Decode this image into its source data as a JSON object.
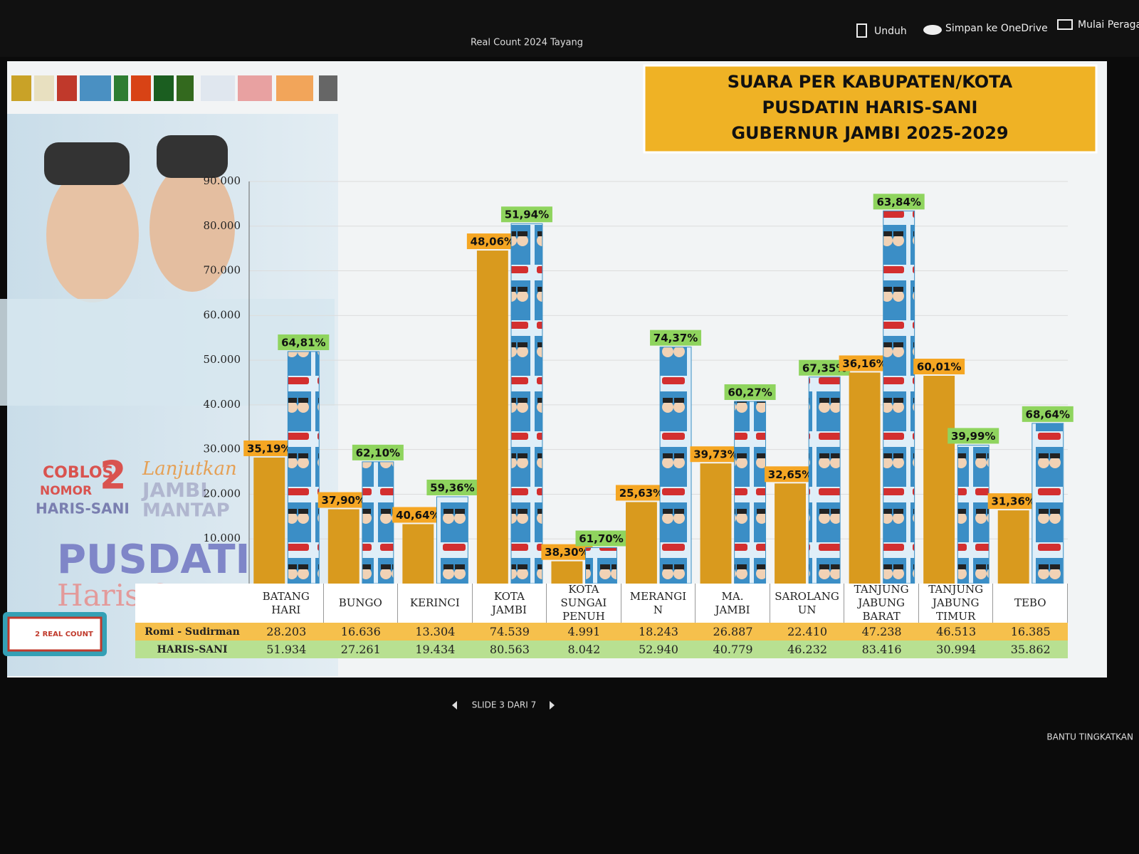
{
  "toolbar": {
    "title": "Real Count 2024 Tayang",
    "buttons": [
      "Unduh",
      "Simpan ke OneDrive",
      "Mulai Peraga"
    ]
  },
  "footer": {
    "slide": "SLIDE 3 DARI 7",
    "help": "BANTU TINGKATKAN"
  },
  "side_panel": {
    "campaign": [
      "COBLOS",
      "NOMOR",
      "2",
      "HARIS-SANI"
    ],
    "slogan": [
      "Lanjutkan",
      "JAMBI",
      "MANTAP"
    ],
    "brand": [
      "PUSDATIN",
      "Haris-Sani"
    ],
    "badge": "2 REAL COUNT"
  },
  "chart_data": {
    "type": "bar",
    "title": [
      "SUARA PER KABUPATEN/KOTA",
      "PUSDATIN HARIS-SANI",
      "GUBERNUR JAMBI 2025-2029"
    ],
    "categories": [
      "BATANG HARI",
      "BUNGO",
      "KERINCI",
      "KOTA JAMBI",
      "KOTA SUNGAI PENUH",
      "MERANGI N",
      "MA. JAMBI",
      "SAROLANG UN",
      "TANJUNG JABUNG BARAT",
      "TANJUNG JABUNG TIMUR",
      "TEBO"
    ],
    "series": [
      {
        "name": "Romi - Sudirman",
        "color": "#d99a1e",
        "values": [
          28203,
          16636,
          13304,
          74539,
          4991,
          18243,
          26887,
          22410,
          47238,
          46513,
          16385
        ],
        "value_labels": [
          "28.203",
          "16.636",
          "13.304",
          "74.539",
          "4.991",
          "18.243",
          "26.887",
          "22.410",
          "47.238",
          "46.513",
          "16.385"
        ],
        "percent_labels": [
          "35,19%",
          "37,90%",
          "40,64%",
          "48,06%",
          "38,30%",
          "25,63%",
          "39,73%",
          "32,65%",
          "36,16%",
          "60,01%",
          "31,36%"
        ]
      },
      {
        "name": "HARIS-SANI",
        "color": "#3a8fc4",
        "values": [
          51934,
          27261,
          19434,
          80563,
          8042,
          52940,
          40779,
          46232,
          83416,
          30994,
          35862
        ],
        "value_labels": [
          "51.934",
          "27.261",
          "19.434",
          "80.563",
          "8.042",
          "52.940",
          "40.779",
          "46.232",
          "83.416",
          "30.994",
          "35.862"
        ],
        "percent_labels": [
          "64,81%",
          "62,10%",
          "59,36%",
          "51,94%",
          "61,70%",
          "74,37%",
          "60,27%",
          "67,35%",
          "63,84%",
          "39,99%",
          "68,64%"
        ]
      }
    ],
    "ylim": [
      0,
      90000
    ],
    "yticks": [
      {
        "value": 10000,
        "label": "10.000"
      },
      {
        "value": 20000,
        "label": "20.000"
      },
      {
        "value": 30000,
        "label": "30.000"
      },
      {
        "value": 40000,
        "label": "40.000"
      },
      {
        "value": 50000,
        "label": "50.000"
      },
      {
        "value": 60000,
        "label": "60.000"
      },
      {
        "value": 70000,
        "label": "70.000"
      },
      {
        "value": 80000,
        "label": "80.000"
      },
      {
        "value": 90000,
        "label": "90.000"
      }
    ],
    "grid": true
  }
}
